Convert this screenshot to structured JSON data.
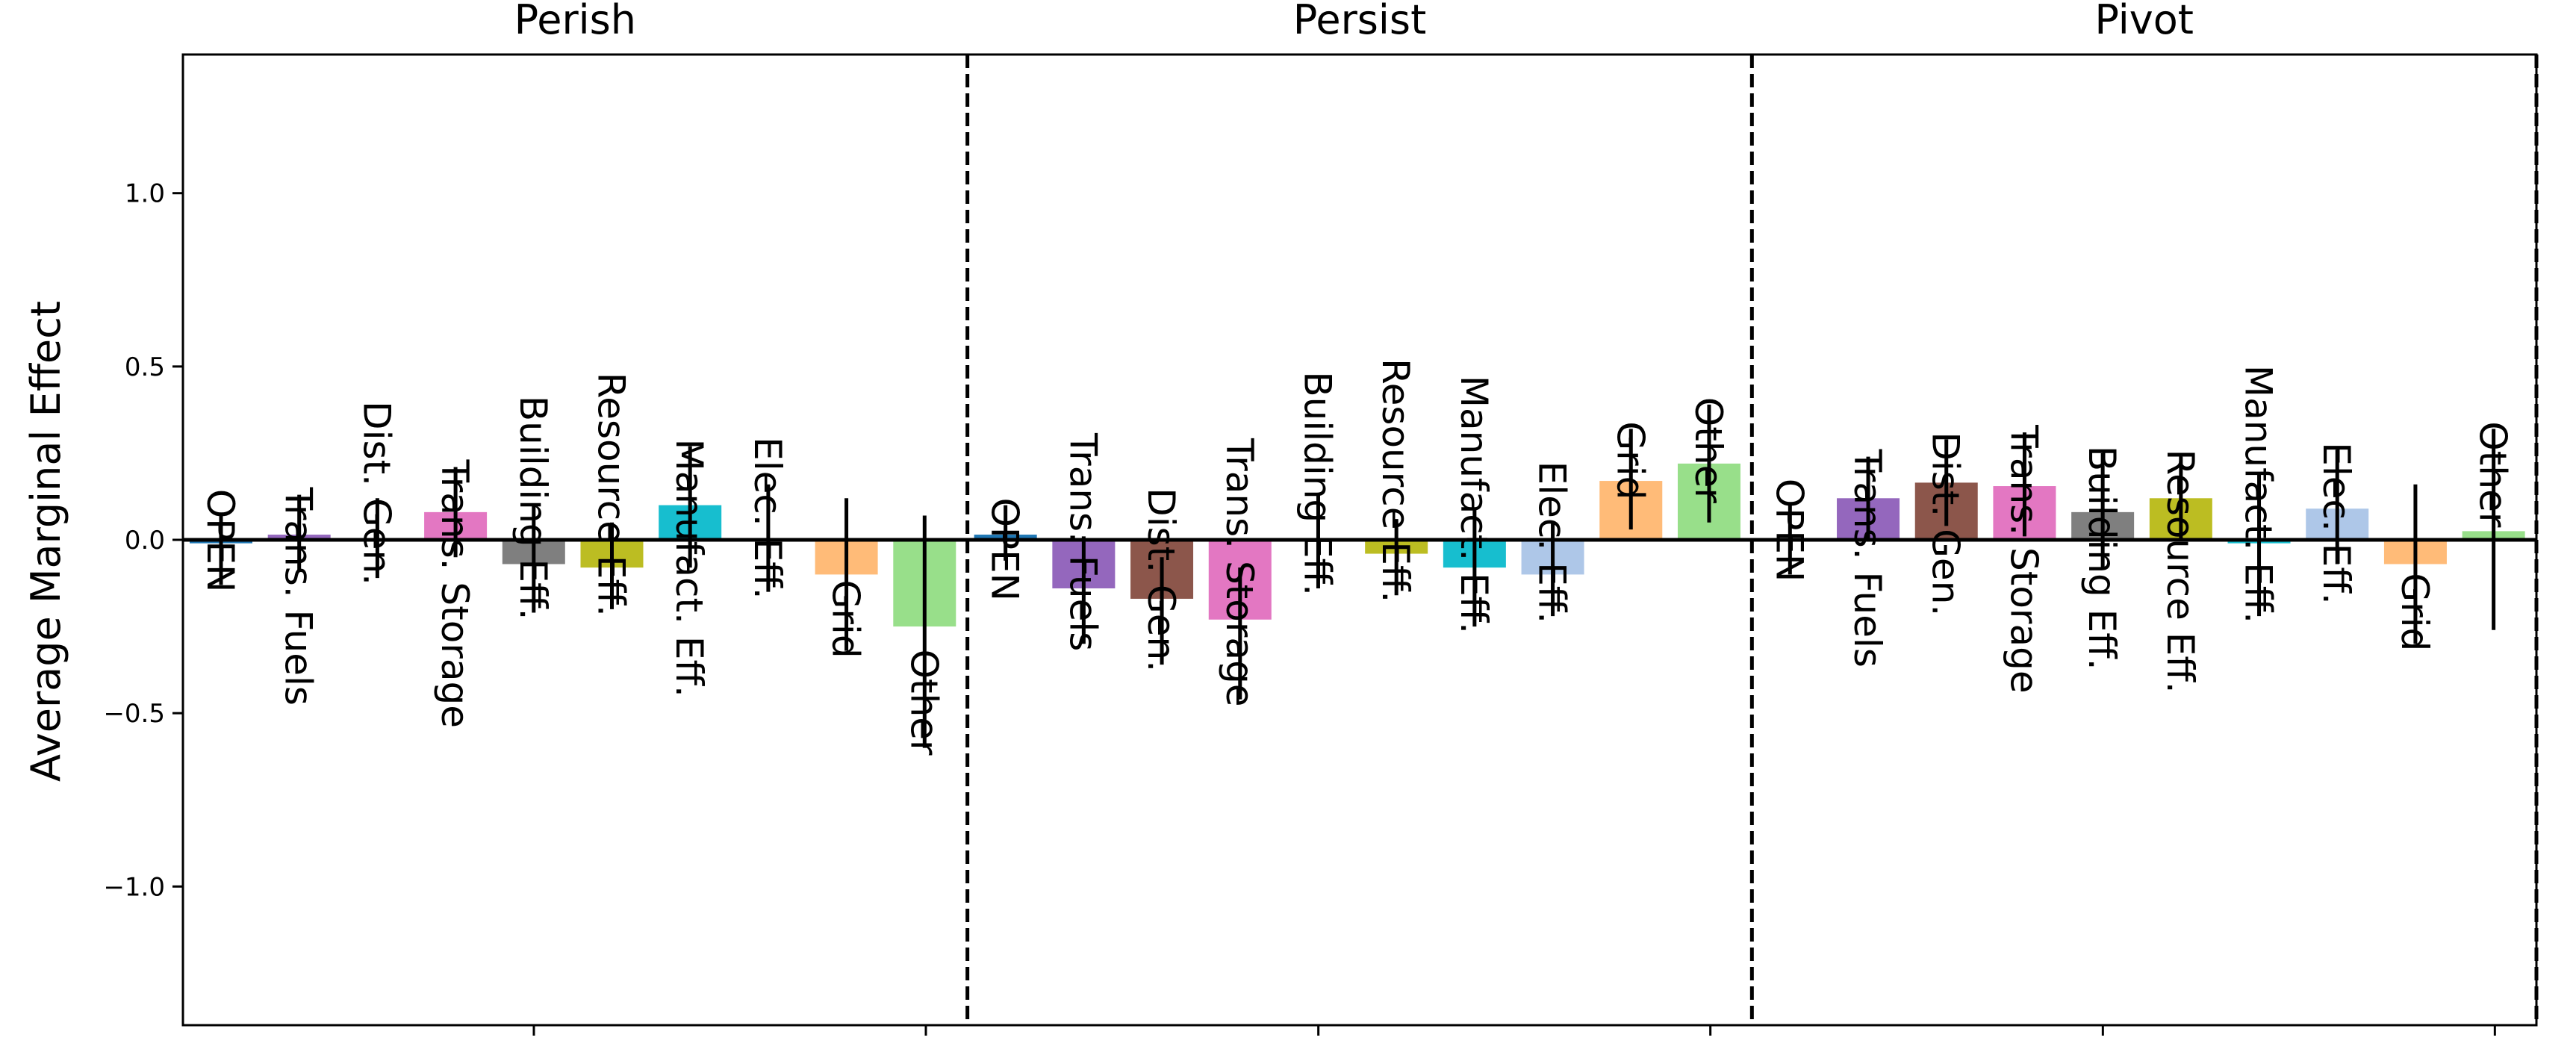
{
  "chart_data": {
    "type": "bar",
    "title": "",
    "xlabel": "",
    "ylabel": "Average Marginal Effect",
    "ylim": [
      -1.4,
      1.4
    ],
    "yticks": [
      1.0,
      0.5,
      0.0,
      -0.5,
      -1.0
    ],
    "ytick_labels": [
      "1.0",
      "0.5",
      "0.0",
      "−0.5",
      "−1.0"
    ],
    "grid": false,
    "legend": "none",
    "category_colors": {
      "OPEN": "#1f77b4",
      "Trans. Fuels": "#9467bd",
      "Dist. Gen.": "#8c564b",
      "Trans. Storage": "#e377c2",
      "Building Eff.": "#7f7f7f",
      "Resource Eff.": "#bcbd22",
      "Manufact. Eff.": "#17becf",
      "Elec. Eff.": "#aec7e8",
      "Grid": "#ffbb78",
      "Other": "#98df8a"
    },
    "groups": [
      {
        "name": "Perish",
        "bars": [
          {
            "category": "OPEN",
            "value": -0.01,
            "err_low": -0.13,
            "err_high": 0.07
          },
          {
            "category": "Trans. Fuels",
            "value": 0.015,
            "err_low": -0.09,
            "err_high": 0.13
          },
          {
            "category": "Dist. Gen.",
            "value": 0.0,
            "err_low": -0.11,
            "err_high": 0.12
          },
          {
            "category": "Trans. Storage",
            "value": 0.08,
            "err_low": -0.05,
            "err_high": 0.21
          },
          {
            "category": "Building Eff.",
            "value": -0.07,
            "err_low": -0.21,
            "err_high": 0.1
          },
          {
            "category": "Resource Eff.",
            "value": -0.08,
            "err_low": -0.2,
            "err_high": 0.05
          },
          {
            "category": "Manufact. Eff.",
            "value": 0.1,
            "err_low": -0.08,
            "err_high": 0.27
          },
          {
            "category": "Elec. Eff.",
            "value": 0.0,
            "err_low": -0.15,
            "err_high": 0.16
          },
          {
            "category": "Grid",
            "value": -0.1,
            "err_low": -0.32,
            "err_high": 0.12
          },
          {
            "category": "Other",
            "value": -0.25,
            "err_low": -0.6,
            "err_high": 0.07
          }
        ]
      },
      {
        "name": "Persist",
        "bars": [
          {
            "category": "OPEN",
            "value": 0.015,
            "err_low": -0.06,
            "err_high": 0.1
          },
          {
            "category": "Trans. Fuels",
            "value": -0.14,
            "err_low": -0.3,
            "err_high": 0.01
          },
          {
            "category": "Dist. Gen.",
            "value": -0.17,
            "err_low": -0.36,
            "err_high": -0.05
          },
          {
            "category": "Trans. Storage",
            "value": -0.23,
            "err_low": -0.46,
            "err_high": -0.08
          },
          {
            "category": "Building Eff.",
            "value": 0.0,
            "err_low": -0.14,
            "err_high": 0.13
          },
          {
            "category": "Resource Eff.",
            "value": -0.04,
            "err_low": -0.16,
            "err_high": 0.06
          },
          {
            "category": "Manufact. Eff.",
            "value": -0.08,
            "err_low": -0.25,
            "err_high": 0.09
          },
          {
            "category": "Elec. Eff.",
            "value": -0.1,
            "err_low": -0.22,
            "err_high": 0.05
          },
          {
            "category": "Grid",
            "value": 0.17,
            "err_low": 0.03,
            "err_high": 0.32
          },
          {
            "category": "Other",
            "value": 0.22,
            "err_low": 0.05,
            "err_high": 0.39
          }
        ]
      },
      {
        "name": "Pivot",
        "bars": [
          {
            "category": "OPEN",
            "value": 0.0,
            "err_low": -0.1,
            "err_high": 0.1
          },
          {
            "category": "Trans. Fuels",
            "value": 0.12,
            "err_low": 0.0,
            "err_high": 0.24
          },
          {
            "category": "Dist. Gen.",
            "value": 0.165,
            "err_low": 0.04,
            "err_high": 0.29
          },
          {
            "category": "Trans. Storage",
            "value": 0.155,
            "err_low": 0.01,
            "err_high": 0.31
          },
          {
            "category": "Building Eff.",
            "value": 0.08,
            "err_low": -0.08,
            "err_high": 0.25
          },
          {
            "category": "Resource Eff.",
            "value": 0.12,
            "err_low": 0.0,
            "err_high": 0.24
          },
          {
            "category": "Manufact. Eff.",
            "value": -0.01,
            "err_low": -0.22,
            "err_high": 0.19
          },
          {
            "category": "Elec. Eff.",
            "value": 0.09,
            "err_low": -0.07,
            "err_high": 0.26
          },
          {
            "category": "Grid",
            "value": -0.07,
            "err_low": -0.3,
            "err_high": 0.16
          },
          {
            "category": "Other",
            "value": 0.025,
            "err_low": -0.26,
            "err_high": 0.32
          }
        ]
      }
    ]
  }
}
